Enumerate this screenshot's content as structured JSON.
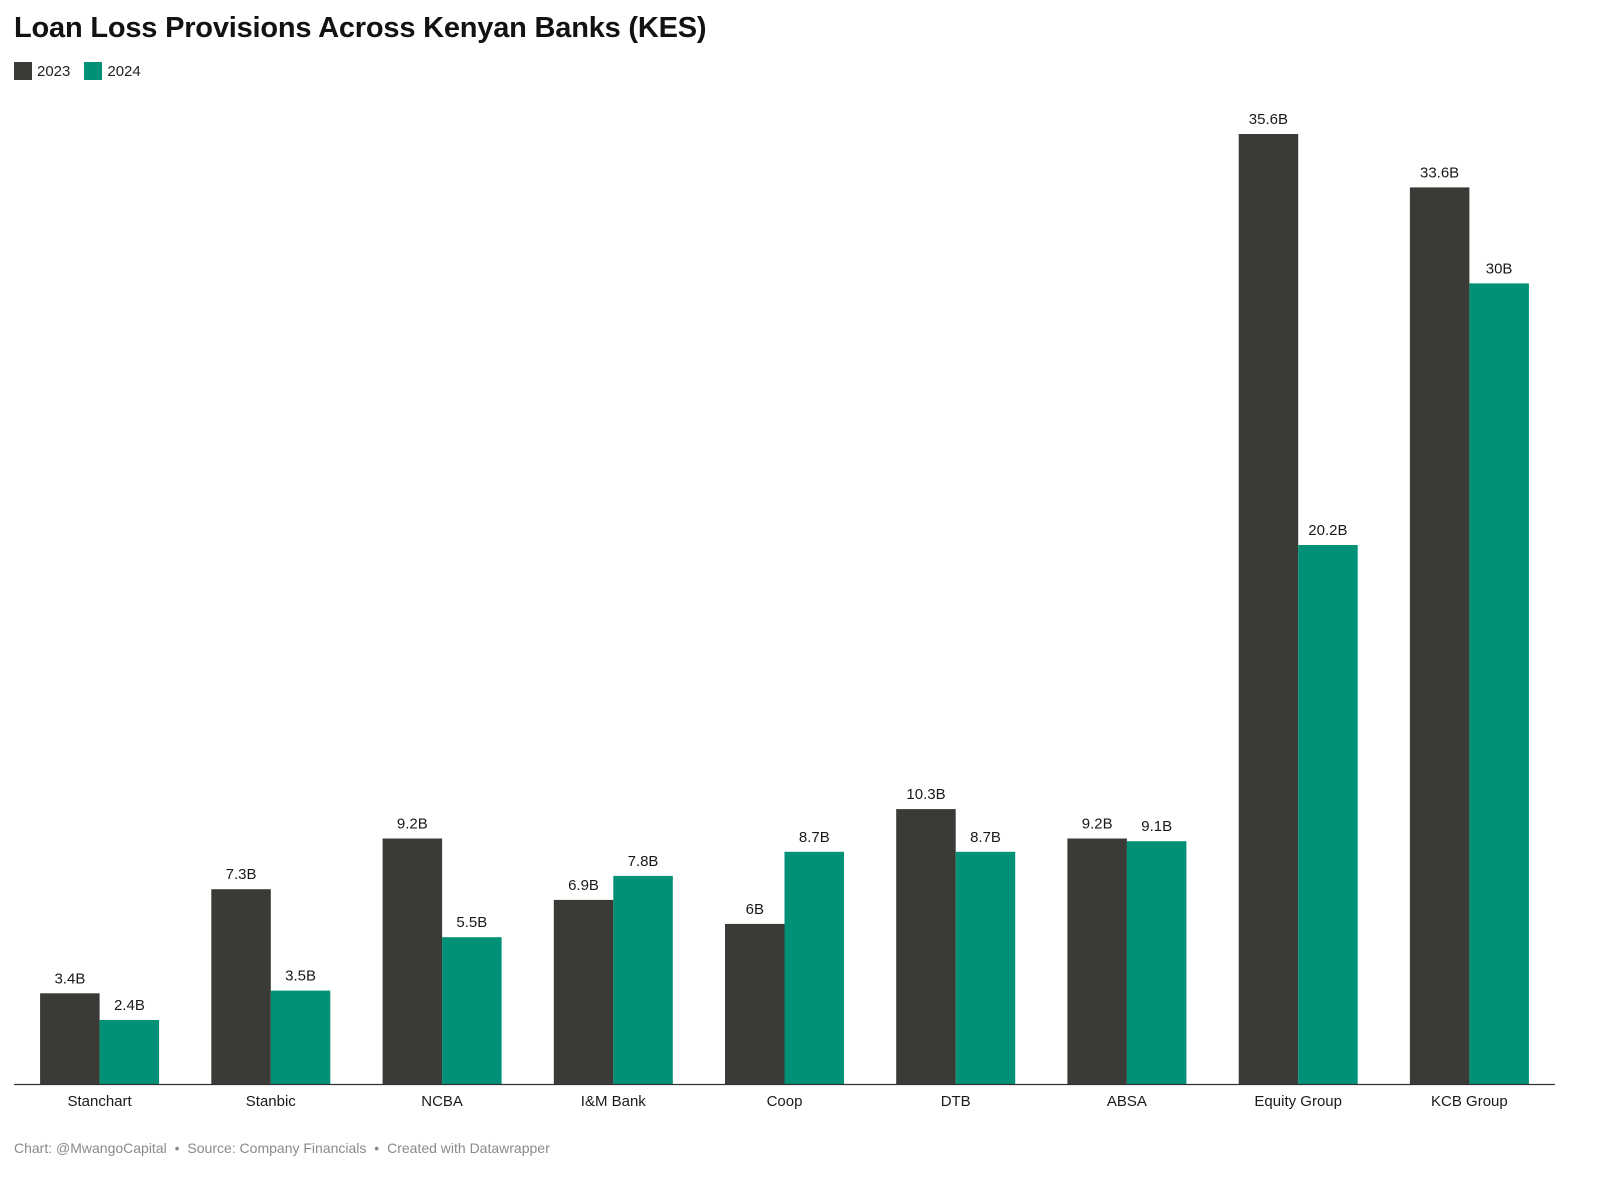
{
  "chart_data": {
    "type": "bar",
    "title": "Loan Loss Provisions Across Kenyan Banks (KES)",
    "categories": [
      "Stanchart",
      "Stanbic",
      "NCBA",
      "I&M Bank",
      "Coop",
      "DTB",
      "ABSA",
      "Equity Group",
      "KCB Group"
    ],
    "series": [
      {
        "name": "2023",
        "color": "#3a3a36",
        "values": [
          3.4,
          7.3,
          9.2,
          6.9,
          6,
          10.3,
          9.2,
          35.6,
          33.6
        ],
        "labels": [
          "3.4B",
          "7.3B",
          "9.2B",
          "6.9B",
          "6B",
          "10.3B",
          "9.2B",
          "35.6B",
          "33.6B"
        ]
      },
      {
        "name": "2024",
        "color": "#009177",
        "values": [
          2.4,
          3.5,
          5.5,
          7.8,
          8.7,
          8.7,
          9.1,
          20.2,
          30
        ],
        "labels": [
          "2.4B",
          "3.5B",
          "5.5B",
          "7.8B",
          "8.7B",
          "8.7B",
          "9.1B",
          "20.2B",
          "30B"
        ]
      }
    ],
    "ylim": [
      0,
      35.6
    ],
    "grid": false,
    "legend_position": "top-left"
  },
  "footer": {
    "chart_credit": "Chart: @MwangoCapital",
    "source": "Source: Company Financials",
    "created_with": "Created with Datawrapper",
    "separator": "•"
  }
}
